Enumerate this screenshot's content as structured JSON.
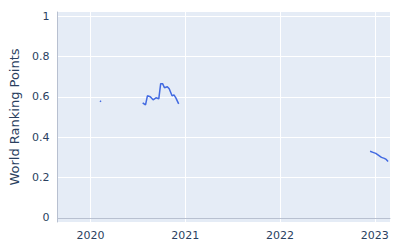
{
  "chart_data": {
    "type": "line",
    "y_label": "World Ranking Points",
    "x": [
      2020.1,
      2020.11,
      2020.3,
      2020.55,
      2020.58,
      2020.6,
      2020.63,
      2020.66,
      2020.69,
      2020.72,
      2020.74,
      2020.76,
      2020.78,
      2020.81,
      2020.83,
      2020.86,
      2020.88,
      2020.9,
      2020.93,
      2021.9,
      2022.95,
      2022.98,
      2023.01,
      2023.04,
      2023.07,
      2023.1,
      2023.12,
      2023.14
    ],
    "values": [
      0.58,
      0.575,
      null,
      0.57,
      0.56,
      0.605,
      0.6,
      0.585,
      0.595,
      0.59,
      0.665,
      0.665,
      0.645,
      0.65,
      0.64,
      0.605,
      0.61,
      0.595,
      0.565,
      null,
      0.33,
      0.325,
      0.32,
      0.31,
      0.3,
      0.295,
      0.29,
      0.28
    ],
    "color": "#4169e1",
    "xlim": [
      2019.65,
      2023.16
    ],
    "xticks": [
      2020,
      2021,
      2022,
      2023
    ],
    "ylim": [
      -0.02,
      1.02
    ],
    "yticks": [
      0,
      0.2,
      0.4,
      0.6,
      0.8,
      1
    ],
    "grid": true
  }
}
